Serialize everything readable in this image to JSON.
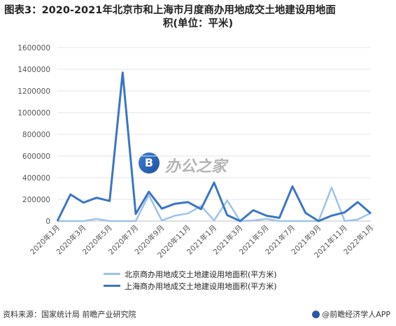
{
  "title": {
    "line1": "图表3：2020-2021年北京市和上海市月度商办用地成交土地建设用地面",
    "line2": "积(单位：平米)"
  },
  "watermark": {
    "badge": "B",
    "text": "办公之家"
  },
  "colors": {
    "beijing": "#9ec3ea",
    "shanghai": "#3a76c4",
    "grid": "#e4e4e4",
    "axis": "#bfbfbf"
  },
  "legend": {
    "beijing": "北京商办用地成交土地建设用地面积(平方米)",
    "shanghai": "上海商办用地成交土地建设用地面积(平方米)"
  },
  "footer": {
    "source": "资料来源：国家统计局 前瞻产业研究院",
    "brand": "@前瞻经济学人APP"
  },
  "chart_data": {
    "type": "line",
    "title": "2020-2021年北京市和上海市月度商办用地成交土地建设用地面积(单位：平米)",
    "ylim": [
      0,
      1600000
    ],
    "yticks": [
      0,
      200000,
      400000,
      600000,
      800000,
      1000000,
      1200000,
      1400000,
      1600000
    ],
    "ytick_labels": [
      "0",
      "200000",
      "400000",
      "600000",
      "800000",
      "1000000",
      "1200000",
      "1400000",
      "1600000"
    ],
    "categories": [
      "2020年1月",
      "2020年2月",
      "2020年3月",
      "2020年4月",
      "2020年5月",
      "2020年6月",
      "2020年7月",
      "2020年8月",
      "2020年9月",
      "2020年10月",
      "2020年11月",
      "2020年12月",
      "2021年1月",
      "2021年2月",
      "2021年3月",
      "2021年4月",
      "2021年5月",
      "2021年6月",
      "2021年7月",
      "2021年8月",
      "2021年9月",
      "2021年10月",
      "2021年11月",
      "2021年12月",
      "2022年1月"
    ],
    "xtick_labels": [
      "2020年1月",
      "2020年3月",
      "2020年5月",
      "2020年7月",
      "2020年9月",
      "2020年11月",
      "2021年1月",
      "2021年3月",
      "2021年5月",
      "2021年7月",
      "2021年9月",
      "2021年11月",
      "2022年1月"
    ],
    "grid": true,
    "legend_position": "bottom",
    "series": [
      {
        "name": "北京商办用地成交土地建设用地面积(平方米)",
        "values": [
          0,
          0,
          0,
          20000,
          0,
          0,
          0,
          240000,
          5000,
          50000,
          70000,
          140000,
          5000,
          190000,
          0,
          5000,
          20000,
          0,
          0,
          0,
          0,
          310000,
          0,
          15000,
          75000
        ]
      },
      {
        "name": "上海商办用地成交土地建设用地面积(平方米)",
        "values": [
          0,
          245000,
          170000,
          215000,
          185000,
          1370000,
          65000,
          270000,
          115000,
          160000,
          175000,
          110000,
          355000,
          55000,
          0,
          100000,
          50000,
          30000,
          320000,
          75000,
          0,
          50000,
          80000,
          175000,
          70000
        ]
      }
    ]
  }
}
